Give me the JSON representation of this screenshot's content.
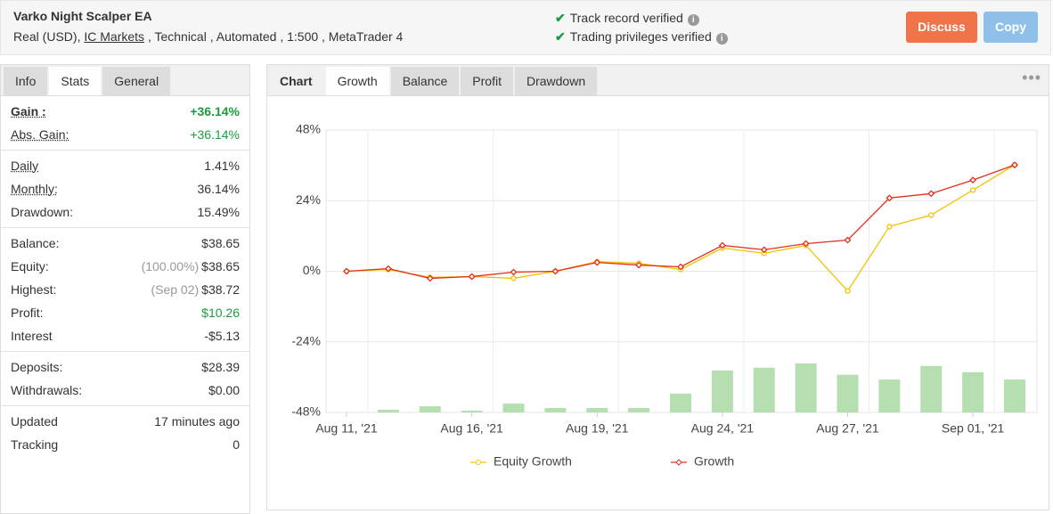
{
  "header": {
    "title": "Varko Night Scalper EA",
    "account_prefix": "Real (USD),",
    "broker": "IC Markets",
    "account_suffix": ", Technical , Automated , 1:500 , MetaTrader 4",
    "verified": [
      "Track record verified",
      "Trading privileges verified"
    ],
    "buttons": [
      "Discuss",
      "Copy"
    ]
  },
  "info_panel": {
    "tabs": [
      "Info",
      "Stats",
      "General"
    ],
    "groups": [
      [
        {
          "label": "Gain :",
          "value": "+36.14%",
          "color": "#1a9c3e",
          "bold": true
        },
        {
          "label": "Abs. Gain:",
          "value": "+36.14%",
          "color": "#1a9c3e"
        }
      ],
      [
        {
          "label": "Daily",
          "value": "1.41%"
        },
        {
          "label": "Monthly:",
          "value": "36.14%"
        },
        {
          "label": "Drawdown:",
          "value": "15.49%"
        }
      ],
      [
        {
          "label": "Balance:",
          "value": "$38.65"
        },
        {
          "label": "Equity:",
          "note": "(100.00%)",
          "value": "$38.65"
        },
        {
          "label": "Highest:",
          "note": "(Sep 02)",
          "value": "$38.72"
        },
        {
          "label": "Profit:",
          "value": "$10.26",
          "color": "#1a9c3e"
        },
        {
          "label": "Interest",
          "value": "-$5.13"
        }
      ],
      [
        {
          "label": "Deposits:",
          "value": "$28.39"
        },
        {
          "label": "Withdrawals:",
          "value": "$0.00"
        }
      ],
      [
        {
          "label": "Updated",
          "value": "17 minutes ago"
        },
        {
          "label": "Tracking",
          "value": "0"
        }
      ]
    ]
  },
  "chart_tabs": {
    "label": "Chart",
    "tabs": [
      "Growth",
      "Balance",
      "Profit",
      "Drawdown"
    ]
  },
  "chart_data": {
    "type": "line",
    "categories": [
      "Aug 11, '21",
      null,
      null,
      "Aug 16, '21",
      null,
      null,
      "Aug 19, '21",
      null,
      null,
      "Aug 24, '21",
      null,
      null,
      "Aug 27, '21",
      null,
      null,
      "Sep 01, '21",
      null
    ],
    "series": [
      {
        "name": "Equity Growth",
        "color": "#f2c200",
        "marker": "circle",
        "values": [
          0,
          0.6,
          -2.1,
          -1.8,
          -2.4,
          0,
          3.3,
          2.7,
          0.6,
          7.9,
          6.1,
          8.8,
          -6.7,
          15.2,
          19.1,
          27.6,
          36.14
        ]
      },
      {
        "name": "Growth",
        "color": "#e0301e",
        "marker": "diamond",
        "values": [
          0,
          0.9,
          -2.4,
          -1.8,
          -0.3,
          0,
          3.0,
          2.1,
          1.5,
          8.8,
          7.3,
          9.4,
          10.6,
          24.9,
          26.4,
          31.0,
          36.14
        ]
      }
    ],
    "bars": {
      "color": "#b5dfb0",
      "values": [
        null,
        0.9,
        2.1,
        0.6,
        3.0,
        1.5,
        1.5,
        1.5,
        6.4,
        14.3,
        15.2,
        16.7,
        12.8,
        11.2,
        15.8,
        13.7,
        11.2
      ]
    },
    "ylim": [
      -48,
      48
    ],
    "yticks": [
      {
        "value": -48,
        "label": "-48%"
      },
      {
        "value": -24,
        "label": "-24%"
      },
      {
        "value": 0,
        "label": "0%"
      },
      {
        "value": 24,
        "label": "24%"
      },
      {
        "value": 48,
        "label": "48%"
      }
    ],
    "grid": true
  }
}
